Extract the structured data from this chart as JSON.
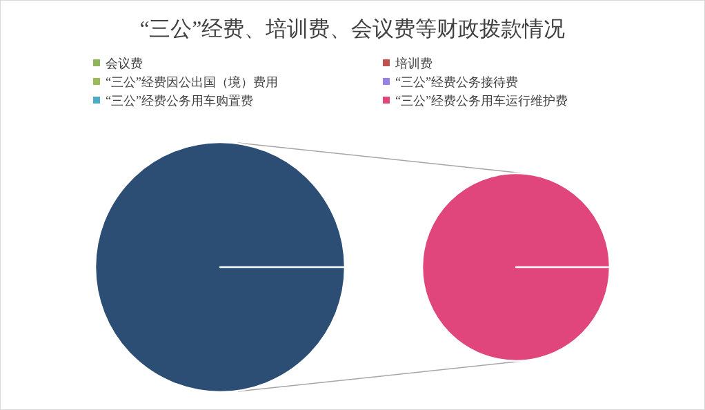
{
  "chart_data": [
    {
      "type": "pie",
      "title": "“三公”经费、培训费、会议费等财政拨款情况",
      "categories": [
        null
      ],
      "values": [
        100
      ],
      "colors": [
        "#2c4e75"
      ]
    },
    {
      "type": "pie",
      "legend": "top",
      "categories": [
        "会议费",
        "培训费",
        "“三公”经费因公出国（境）费用",
        "“三公”经费公务接待费",
        "“三公”经费公务用车购置费",
        "“三公”经费公务用车运行维护费"
      ],
      "values": [
        0,
        0,
        0,
        0,
        0,
        100
      ],
      "colors": [
        "#8fb55a",
        "#c0504d",
        "#9bbb59",
        "#9b7fe8",
        "#4bacc6",
        "#e0457b"
      ]
    }
  ]
}
